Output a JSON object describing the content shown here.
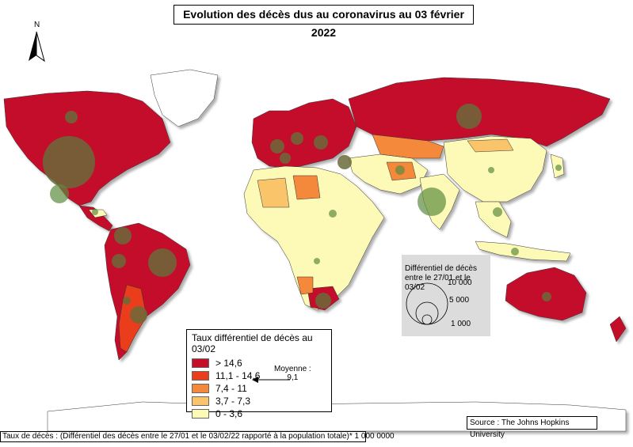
{
  "title": "Evolution des décès dus au coronavirus au 03 février 2022",
  "north_arrow": {
    "label": "N"
  },
  "legend_rate": {
    "title": "Taux différentiel de décès au 03/02",
    "classes": [
      {
        "label": "> 14,6",
        "color": "#c40f2b"
      },
      {
        "label": "11,1 - 14,6",
        "color": "#ea3d1c"
      },
      {
        "label": "7,4 - 11",
        "color": "#f4883b"
      },
      {
        "label": "3,7 - 7,3",
        "color": "#f9c46b"
      },
      {
        "label": "0 - 3,6",
        "color": "#fdfab8"
      }
    ]
  },
  "mean": {
    "label_line1": "Moyenne :",
    "label_line2": "9,1"
  },
  "legend_size": {
    "title": "Différentiel de décès entre le 27/01 et le 03/02",
    "values": [
      "10 000",
      "5 000",
      "1 000"
    ]
  },
  "source": "Source : The Johns Hopkins University",
  "note": "Taux de décès : (Différentiel des décès entre le 27/01 et le 03/02/22 rapporté à la population totale)* 1 000 0000",
  "colors": {
    "circle_fill": "#5d8c3e",
    "circle_big": "#6b6b3a",
    "ocean": "#ffffff"
  }
}
